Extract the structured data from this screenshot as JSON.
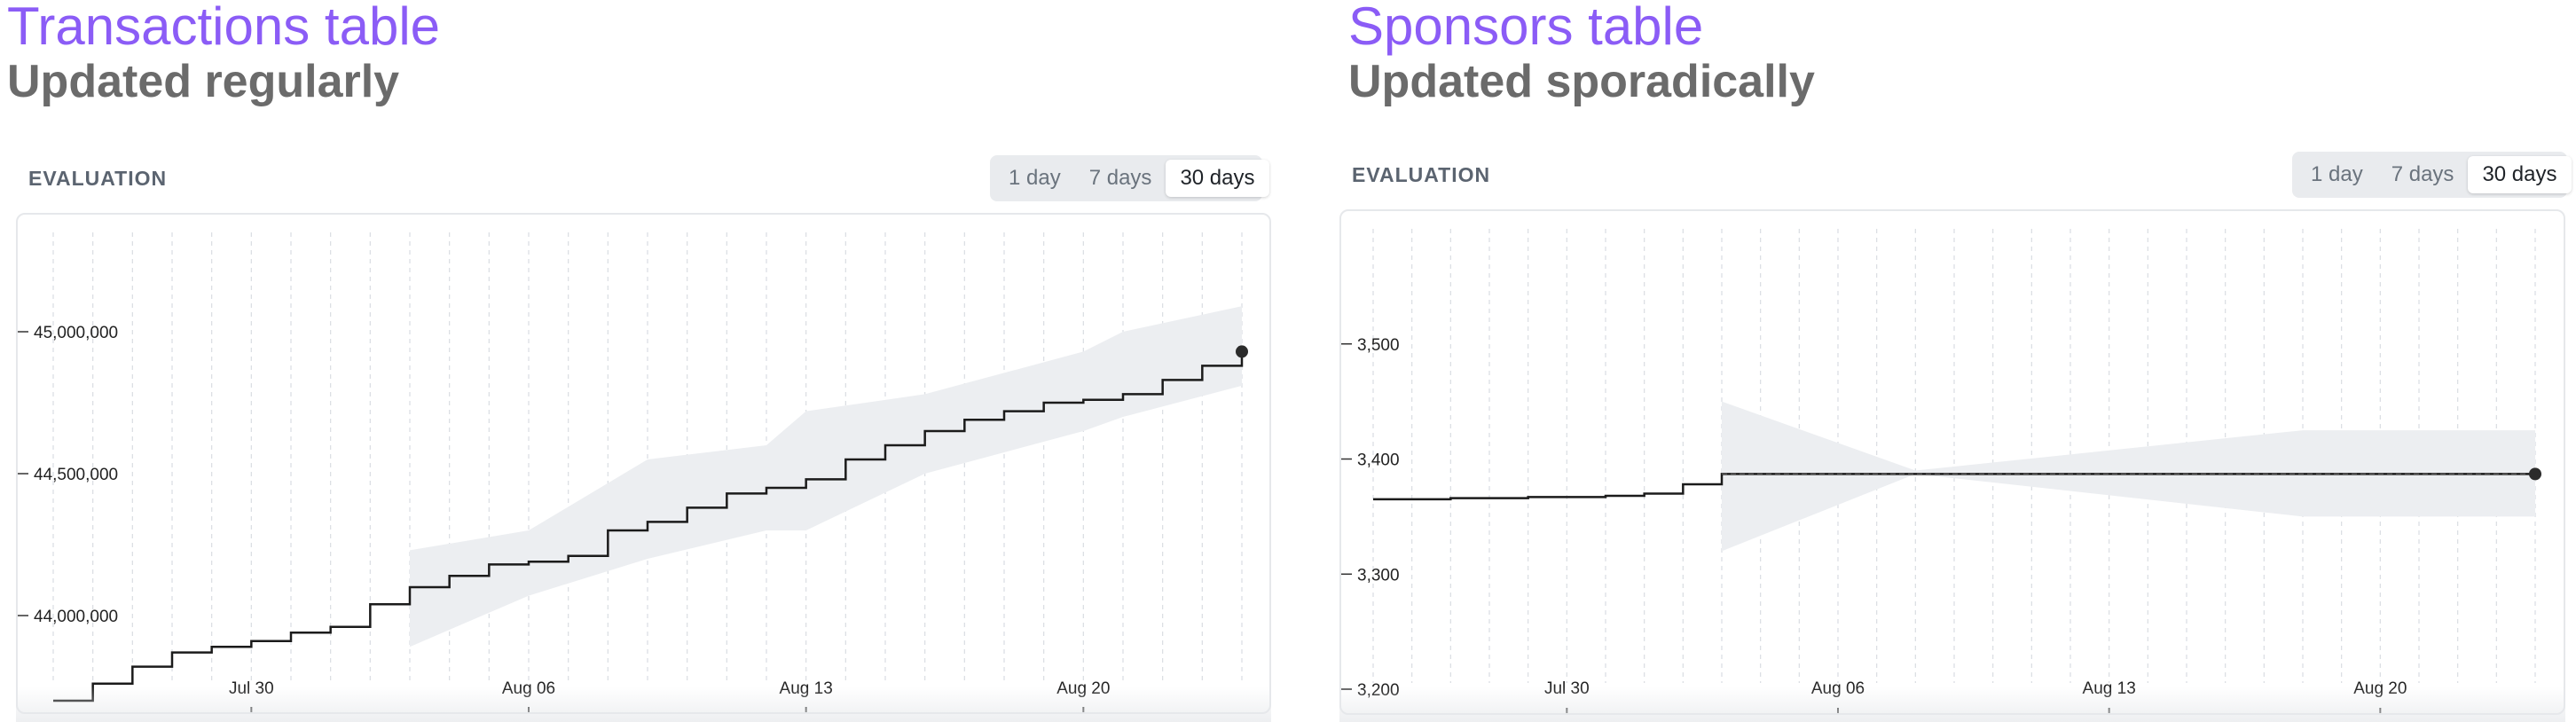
{
  "panels": [
    {
      "title": "Transactions table",
      "subtitle": "Updated regularly",
      "section_label": "EVALUATION",
      "range_options": [
        "1 day",
        "7 days",
        "30 days"
      ],
      "active_range": "30 days"
    },
    {
      "title": "Sponsors table",
      "subtitle": "Updated sporadically",
      "section_label": "EVALUATION",
      "range_options": [
        "1 day",
        "7 days",
        "30 days"
      ],
      "active_range": "30 days"
    }
  ],
  "chart_data": [
    {
      "type": "line",
      "title": "",
      "xlabel": "",
      "ylabel": "",
      "x_ticks": [
        "Jul 30",
        "Aug 06",
        "Aug 13",
        "Aug 20"
      ],
      "y_ticks": [
        "44,000,000",
        "44,500,000",
        "45,000,000"
      ],
      "y_tick_values": [
        44000000,
        44500000,
        45000000
      ],
      "ylim": [
        43700000,
        45350000
      ],
      "grid": "vertical-dashed",
      "series": [
        {
          "x": [
            "Jul 25",
            "Jul 26",
            "Jul 27",
            "Jul 28",
            "Jul 29",
            "Jul 30",
            "Jul 31",
            "Aug 01",
            "Aug 02",
            "Aug 03",
            "Aug 04",
            "Aug 05",
            "Aug 06",
            "Aug 07",
            "Aug 08",
            "Aug 09",
            "Aug 10",
            "Aug 11",
            "Aug 12",
            "Aug 13",
            "Aug 14",
            "Aug 15",
            "Aug 16",
            "Aug 17",
            "Aug 18",
            "Aug 19",
            "Aug 20",
            "Aug 21",
            "Aug 22",
            "Aug 23",
            "Aug 24"
          ],
          "values": [
            43700000,
            43760000,
            43820000,
            43870000,
            43890000,
            43910000,
            43940000,
            43960000,
            44040000,
            44100000,
            44140000,
            44180000,
            44190000,
            44210000,
            44300000,
            44330000,
            44380000,
            44430000,
            44450000,
            44480000,
            44550000,
            44600000,
            44650000,
            44690000,
            44720000,
            44750000,
            44760000,
            44780000,
            44830000,
            44880000,
            44930000
          ]
        }
      ],
      "band": {
        "x": [
          "Aug 03",
          "Aug 06",
          "Aug 09",
          "Aug 12",
          "Aug 13",
          "Aug 16",
          "Aug 20",
          "Aug 21",
          "Aug 24"
        ],
        "upper": [
          44230000,
          44300000,
          44550000,
          44600000,
          44720000,
          44780000,
          44930000,
          45000000,
          45090000
        ],
        "lower": [
          43890000,
          44070000,
          44200000,
          44300000,
          44300000,
          44500000,
          44650000,
          44700000,
          44810000
        ]
      }
    },
    {
      "type": "line",
      "title": "",
      "xlabel": "",
      "ylabel": "",
      "x_ticks": [
        "Jul 30",
        "Aug 06",
        "Aug 13",
        "Aug 20"
      ],
      "y_ticks": [
        "3,200",
        "3,300",
        "3,400",
        "3,500"
      ],
      "y_tick_values": [
        3200,
        3300,
        3400,
        3500
      ],
      "ylim": [
        3190,
        3600
      ],
      "grid": "vertical-dashed",
      "series": [
        {
          "x": [
            "Jul 25",
            "Jul 27",
            "Jul 29",
            "Jul 31",
            "Aug 01",
            "Aug 02",
            "Aug 03",
            "Aug 24"
          ],
          "values": [
            3365,
            3366,
            3367,
            3368,
            3370,
            3378,
            3387,
            3387
          ]
        }
      ],
      "band": {
        "x": [
          "Aug 03",
          "Aug 08",
          "Aug 18",
          "Aug 24"
        ],
        "upper": [
          3450,
          3390,
          3425,
          3425
        ],
        "lower": [
          3320,
          3387,
          3350,
          3350
        ]
      }
    }
  ]
}
